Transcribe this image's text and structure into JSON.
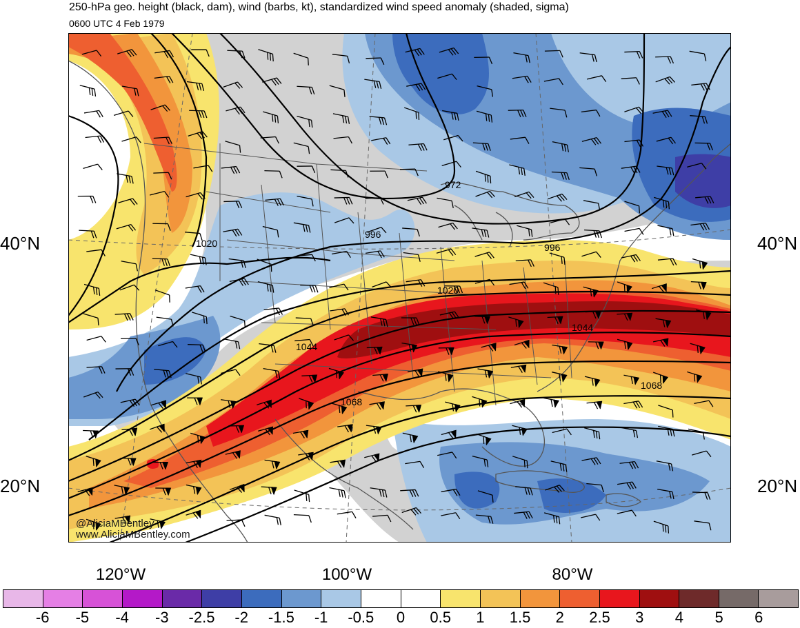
{
  "title": "250-hPa geo. height (black, dam), wind (barbs, kt), standardized wind speed anomaly (shaded, sigma)",
  "subtitle": "0600 UTC 4 Feb 1979",
  "latitude_labels": [
    {
      "name": "lat-40-left",
      "text": "40°N"
    },
    {
      "name": "lat-40-right",
      "text": "40°N"
    },
    {
      "name": "lat-20-left",
      "text": "20°N"
    },
    {
      "name": "lat-20-right",
      "text": "20°N"
    }
  ],
  "longitude_labels": [
    "120°W",
    "100°W",
    "80°W"
  ],
  "contour_labels": [
    "972",
    "996",
    "996",
    "1020",
    "1020",
    "1044",
    "1044",
    "1068",
    "1068"
  ],
  "credit": {
    "handle": "@AliciaMBentley",
    "url": "www.AliciaMBentley.com"
  },
  "colorbar": {
    "colors": [
      "#e8b7e8",
      "#e57fe5",
      "#d752d7",
      "#b419c8",
      "#6a2aa8",
      "#3e3ea6",
      "#3c6cbd",
      "#6c98cf",
      "#a9c8e6",
      "#ffffff",
      "#ffffff",
      "#f8e46d",
      "#f3c357",
      "#f2953c",
      "#ee5f30",
      "#e8161d",
      "#9f0f10",
      "#6e2a2a",
      "#766a68",
      "#a89c9c"
    ],
    "labels": [
      "-6",
      "-5",
      "-4",
      "-3",
      "-2.5",
      "-2",
      "-1.5",
      "-1",
      "-0.5",
      "0",
      "0.5",
      "1",
      "1.5",
      "2",
      "2.5",
      "3",
      "4",
      "5",
      "6"
    ]
  },
  "shading_colors": {
    "land_gray": "#d2d2d2",
    "neg_light": "#a9c8e6",
    "neg_mid": "#6c98cf",
    "neg_strong": "#3c6cbd",
    "neg_deep": "#3e3ea6",
    "pos_yellow": "#f8e46d",
    "pos_lightorange": "#f3c357",
    "pos_orange": "#f2953c",
    "pos_redorange": "#ee5f30",
    "pos_red": "#e8161d",
    "pos_darkred": "#9f0f10"
  }
}
